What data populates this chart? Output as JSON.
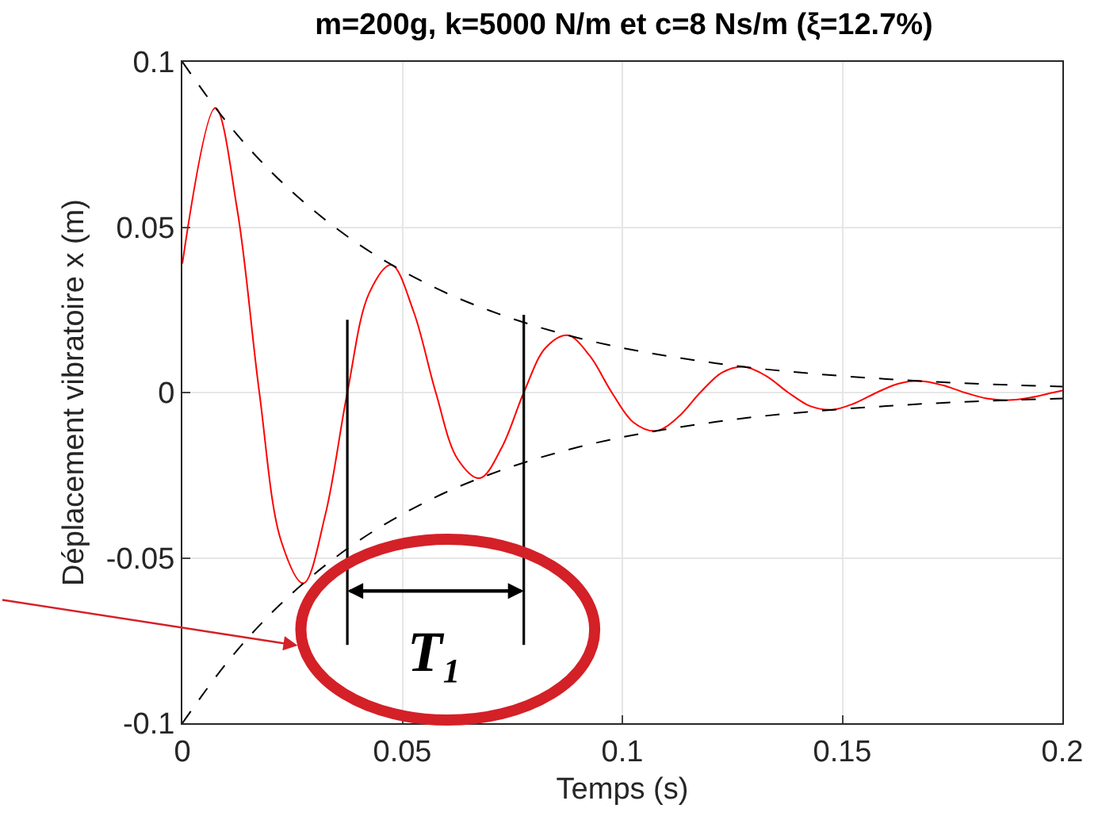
{
  "chart_data": {
    "type": "line",
    "title": "m=200g, k=5000 N/m et c=8 Ns/m (ξ=12.7%)",
    "xlabel": "Temps (s)",
    "ylabel": "Déplacement vibratoire x (m)",
    "xlim": [
      0,
      0.2
    ],
    "xticks": [
      0,
      0.05,
      0.1,
      0.15,
      0.2
    ],
    "ylim": [
      -0.1,
      0.1
    ],
    "yticks": [
      -0.1,
      -0.05,
      0,
      0.05,
      0.1
    ],
    "grid": true,
    "series": [
      {
        "color": "#ff0000",
        "line_style": "solid",
        "x": [
          0,
          0.0075,
          0.0125,
          0.0175,
          0.0225,
          0.0275,
          0.0325,
          0.0375,
          0.0425,
          0.0475,
          0.0525,
          0.0576,
          0.0626,
          0.0676,
          0.0726,
          0.0776,
          0.0826,
          0.0876,
          0.0926,
          0.0976,
          0.1026,
          0.1077,
          0.1127,
          0.1177,
          0.1227,
          0.1277,
          0.1327,
          0.1377,
          0.1427,
          0.1477,
          0.1527,
          0.1578,
          0.1628,
          0.1678,
          0.1728,
          0.1778,
          0.1828,
          0.1878,
          0.1928,
          0.1979,
          0.2
        ],
        "values": [
          0.039,
          0.0861,
          0.0551,
          0,
          -0.0451,
          -0.0577,
          -0.0369,
          0,
          0.0302,
          0.0386,
          0.0247,
          0,
          -0.0202,
          -0.0259,
          -0.0166,
          0,
          0.0136,
          0.0173,
          0.0111,
          0,
          -0.0091,
          -0.0116,
          -0.0074,
          0,
          0.0061,
          0.0078,
          0.005,
          0,
          -0.0041,
          -0.0052,
          -0.0033,
          0,
          0.0027,
          0.0035,
          0.0022,
          0,
          -0.0018,
          -0.0023,
          -0.0015,
          0,
          0.0006
        ]
      },
      {
        "color": "#000000",
        "line_style": "dashed",
        "x": [
          0,
          0.01,
          0.02,
          0.03,
          0.04,
          0.05,
          0.06,
          0.07,
          0.08,
          0.09,
          0.1,
          0.11,
          0.12,
          0.13,
          0.14,
          0.15,
          0.16,
          0.17,
          0.18,
          0.19,
          0.2
        ],
        "values": [
          0.1,
          0.0819,
          0.067,
          0.0549,
          0.0449,
          0.0368,
          0.0301,
          0.0247,
          0.0202,
          0.0165,
          0.0135,
          0.0111,
          0.0091,
          0.0074,
          0.0061,
          0.005,
          0.0041,
          0.0033,
          0.0027,
          0.0022,
          0.0018
        ]
      },
      {
        "color": "#000000",
        "line_style": "dashed",
        "x": [
          0,
          0.01,
          0.02,
          0.03,
          0.04,
          0.05,
          0.06,
          0.07,
          0.08,
          0.09,
          0.1,
          0.11,
          0.12,
          0.13,
          0.14,
          0.15,
          0.16,
          0.17,
          0.18,
          0.19,
          0.2
        ],
        "values": [
          -0.1,
          -0.0819,
          -0.067,
          -0.0549,
          -0.0449,
          -0.0368,
          -0.0301,
          -0.0247,
          -0.0202,
          -0.0165,
          -0.0135,
          -0.0111,
          -0.0091,
          -0.0074,
          -0.0061,
          -0.005,
          -0.0041,
          -0.0033,
          -0.0027,
          -0.0022,
          -0.0018
        ]
      },
      {
        "color": "#000000",
        "line_style": "solid",
        "x": [
          0.0375,
          0.0375
        ],
        "values": [
          -0.0763,
          0.022
        ]
      },
      {
        "color": "#000000",
        "line_style": "solid",
        "x": [
          0.0776,
          0.0776
        ],
        "values": [
          -0.0763,
          0.0235
        ]
      }
    ],
    "annotations": [
      "T₁"
    ]
  }
}
